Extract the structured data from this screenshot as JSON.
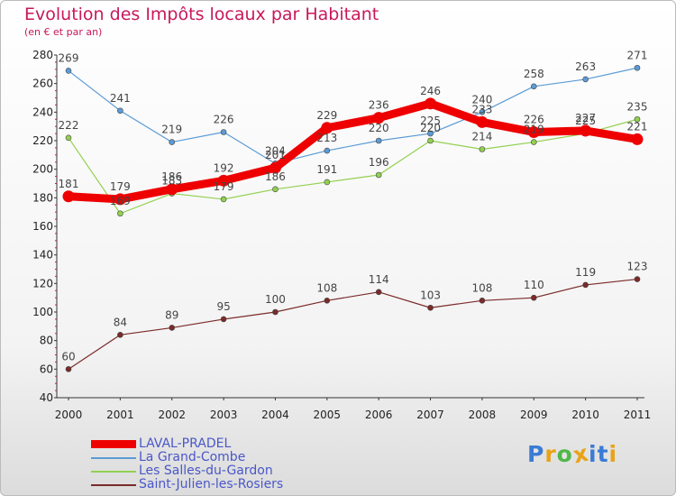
{
  "chart_data": {
    "type": "line",
    "title": "Evolution des Impôts locaux par Habitant",
    "subtitle": "(en € et par an)",
    "xlabel": "",
    "ylabel": "",
    "categories": [
      "2000",
      "2001",
      "2002",
      "2003",
      "2004",
      "2005",
      "2006",
      "2007",
      "2008",
      "2009",
      "2010",
      "2011"
    ],
    "ylim": [
      40,
      280
    ],
    "yticks": [
      40,
      60,
      80,
      100,
      120,
      140,
      160,
      180,
      200,
      220,
      240,
      260,
      280
    ],
    "grid": false,
    "legend_position": "bottom-left",
    "series": [
      {
        "name": "LAVAL-PRADEL",
        "color": "#ee0000",
        "values": [
          181,
          179,
          186,
          192,
          201,
          229,
          236,
          246,
          233,
          226,
          227,
          221
        ]
      },
      {
        "name": "La Grand-Combe",
        "color": "#5b9bd5",
        "values": [
          269,
          241,
          219,
          226,
          204,
          213,
          220,
          225,
          240,
          258,
          263,
          271
        ]
      },
      {
        "name": "Les Salles-du-Gardon",
        "color": "#92d050",
        "values": [
          222,
          169,
          183,
          179,
          186,
          191,
          196,
          220,
          214,
          219,
          225,
          235
        ]
      },
      {
        "name": "Saint-Julien-les-Rosiers",
        "color": "#7b2a2a",
        "values": [
          60,
          84,
          89,
          95,
          100,
          108,
          114,
          103,
          108,
          110,
          119,
          123
        ]
      }
    ]
  },
  "logo": {
    "text": "Proxiti",
    "colors": [
      "#3a7bd5",
      "#e8a317",
      "#4fb848",
      "#e8a317",
      "#3a7bd5",
      "#3a7bd5",
      "#e8a317"
    ]
  }
}
